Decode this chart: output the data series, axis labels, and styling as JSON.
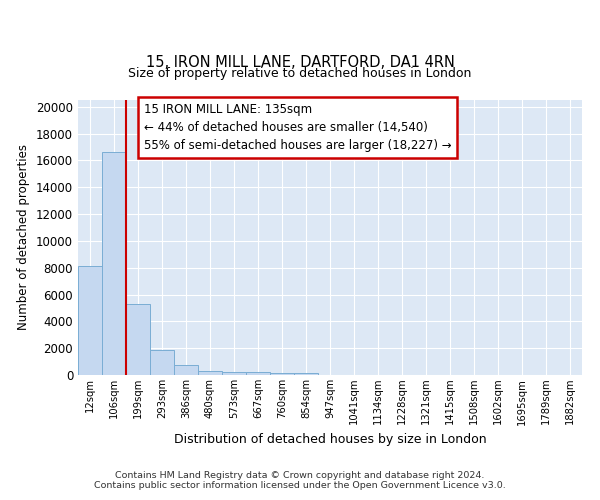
{
  "title1": "15, IRON MILL LANE, DARTFORD, DA1 4RN",
  "title2": "Size of property relative to detached houses in London",
  "xlabel": "Distribution of detached houses by size in London",
  "ylabel": "Number of detached properties",
  "bin_labels": [
    "12sqm",
    "106sqm",
    "199sqm",
    "293sqm",
    "386sqm",
    "480sqm",
    "573sqm",
    "667sqm",
    "760sqm",
    "854sqm",
    "947sqm",
    "1041sqm",
    "1134sqm",
    "1228sqm",
    "1321sqm",
    "1415sqm",
    "1508sqm",
    "1602sqm",
    "1695sqm",
    "1789sqm",
    "1882sqm"
  ],
  "bar_heights": [
    8100,
    16600,
    5300,
    1850,
    780,
    310,
    230,
    200,
    175,
    130,
    0,
    0,
    0,
    0,
    0,
    0,
    0,
    0,
    0,
    0,
    0
  ],
  "bar_color": "#c5d8f0",
  "bar_edge_color": "#7aadd4",
  "red_line_x": 1.5,
  "annotation_title": "15 IRON MILL LANE: 135sqm",
  "annotation_line1": "← 44% of detached houses are smaller (14,540)",
  "annotation_line2": "55% of semi-detached houses are larger (18,227) →",
  "annotation_box_color": "#ffffff",
  "annotation_border_color": "#cc0000",
  "ylim": [
    0,
    20500
  ],
  "yticks": [
    0,
    2000,
    4000,
    6000,
    8000,
    10000,
    12000,
    14000,
    16000,
    18000,
    20000
  ],
  "footer1": "Contains HM Land Registry data © Crown copyright and database right 2024.",
  "footer2": "Contains public sector information licensed under the Open Government Licence v3.0.",
  "bg_color": "#dde8f5",
  "fig_bg": "#ffffff",
  "grid_color": "#ffffff"
}
